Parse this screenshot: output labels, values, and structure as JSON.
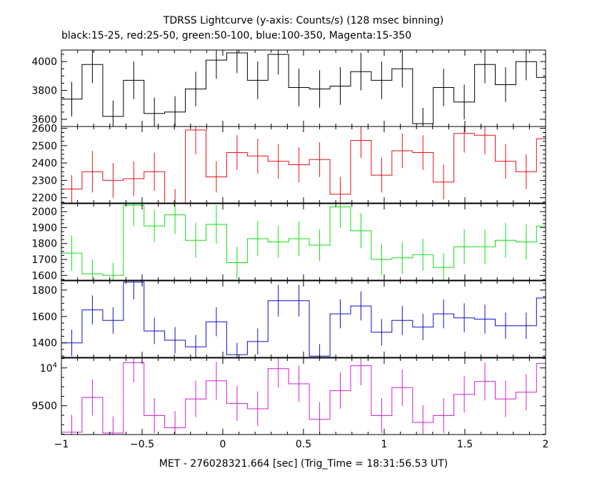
{
  "title": "TDRSS Lightcurve (y-axis: Counts/s) (128 msec binning)",
  "subtitle": "black:15-25, red:25-50, green:50-100, blue:100-350, Magenta:15-350",
  "xlabel": "MET - 276028321.664 [sec] (Trig_Time = 18:31:56.53 UT)",
  "chart_data": {
    "type": "line",
    "style": "step histogram with error bars",
    "bin_width_sec": 0.128,
    "xlim": [
      -1,
      2
    ],
    "x_ticks": [
      -1,
      -0.5,
      0,
      0.5,
      1,
      1.5,
      2
    ],
    "x_tick_labels": [
      "−1",
      "−0.5",
      "0",
      "0.5",
      "1",
      "1.5",
      "2"
    ],
    "x": [
      -1.0,
      -0.872,
      -0.744,
      -0.616,
      -0.488,
      -0.36,
      -0.232,
      -0.104,
      0.024,
      0.152,
      0.28,
      0.408,
      0.536,
      0.664,
      0.792,
      0.92,
      1.048,
      1.176,
      1.304,
      1.432,
      1.56,
      1.688,
      1.816,
      1.944
    ],
    "panels": [
      {
        "band": "15-25",
        "color": "#000000",
        "ylim": [
          3550,
          4080
        ],
        "y_ticks": [
          3600,
          3800,
          4000
        ],
        "y_tick_labels": [
          "3600",
          "3800",
          "4000"
        ],
        "values": [
          3740,
          3980,
          3620,
          3870,
          3640,
          3650,
          3810,
          4010,
          4060,
          3870,
          4050,
          3820,
          3810,
          3830,
          3930,
          3870,
          3950,
          3570,
          3820,
          3720,
          3980,
          3840,
          4000,
          3890
        ],
        "errors": [
          120,
          130,
          110,
          130,
          110,
          110,
          120,
          130,
          140,
          130,
          140,
          130,
          130,
          130,
          130,
          130,
          130,
          110,
          130,
          120,
          130,
          120,
          130,
          130
        ]
      },
      {
        "band": "25-50",
        "color": "#e8101a",
        "ylim": [
          2170,
          2610
        ],
        "y_ticks": [
          2200,
          2300,
          2400,
          2500,
          2600
        ],
        "y_tick_labels": [
          "2200",
          "2300",
          "2400",
          "2500",
          "2600"
        ],
        "values": [
          2250,
          2350,
          2300,
          2310,
          2350,
          2170,
          2590,
          2320,
          2460,
          2440,
          2410,
          2390,
          2420,
          2220,
          2530,
          2330,
          2470,
          2460,
          2290,
          2570,
          2560,
          2410,
          2350,
          2540
        ],
        "errors": [
          80,
          120,
          100,
          100,
          110,
          80,
          140,
          90,
          100,
          100,
          100,
          100,
          100,
          100,
          100,
          100,
          100,
          100,
          100,
          110,
          110,
          100,
          100,
          100
        ]
      },
      {
        "band": "50-100",
        "color": "#10e010",
        "ylim": [
          1570,
          2050
        ],
        "y_ticks": [
          1600,
          1700,
          1800,
          1900,
          2000
        ],
        "y_tick_labels": [
          "1600",
          "1700",
          "1800",
          "1900",
          "2000"
        ],
        "values": [
          1740,
          1610,
          1600,
          2040,
          1910,
          1980,
          1820,
          1920,
          1680,
          1830,
          1810,
          1830,
          1790,
          2030,
          1880,
          1700,
          1710,
          1730,
          1650,
          1780,
          1780,
          1820,
          1810,
          1910
        ],
        "errors": [
          110,
          90,
          80,
          130,
          100,
          120,
          110,
          120,
          100,
          110,
          100,
          110,
          100,
          130,
          110,
          100,
          100,
          100,
          90,
          110,
          110,
          110,
          110,
          110
        ]
      },
      {
        "band": "100-350",
        "color": "#1010c8",
        "ylim": [
          1290,
          1870
        ],
        "y_ticks": [
          1400,
          1600,
          1800
        ],
        "y_tick_labels": [
          "1400",
          "1600",
          "1800"
        ],
        "values": [
          1400,
          1650,
          1570,
          1860,
          1490,
          1420,
          1370,
          1560,
          1310,
          1410,
          1720,
          1720,
          1300,
          1620,
          1680,
          1480,
          1570,
          1520,
          1620,
          1590,
          1580,
          1530,
          1530,
          1740
        ],
        "errors": [
          100,
          110,
          100,
          130,
          100,
          100,
          90,
          110,
          90,
          100,
          120,
          120,
          90,
          110,
          110,
          100,
          110,
          100,
          110,
          110,
          110,
          100,
          100,
          120
        ]
      },
      {
        "band": "15-350",
        "color": "#d020d0",
        "ylim": [
          9120,
          10130
        ],
        "y_ticks": [
          9500,
          10000
        ],
        "y_tick_labels": [
          "9500",
          "10^4"
        ],
        "values": [
          9150,
          9610,
          9140,
          10070,
          9370,
          9210,
          9590,
          9830,
          9530,
          9460,
          9990,
          9790,
          9320,
          9700,
          10030,
          9370,
          9740,
          9280,
          9370,
          9650,
          9820,
          9590,
          9680,
          10060
        ],
        "errors": [
          230,
          240,
          220,
          260,
          230,
          220,
          240,
          250,
          230,
          230,
          250,
          240,
          230,
          240,
          260,
          230,
          240,
          230,
          230,
          240,
          250,
          240,
          240,
          260
        ]
      }
    ]
  }
}
